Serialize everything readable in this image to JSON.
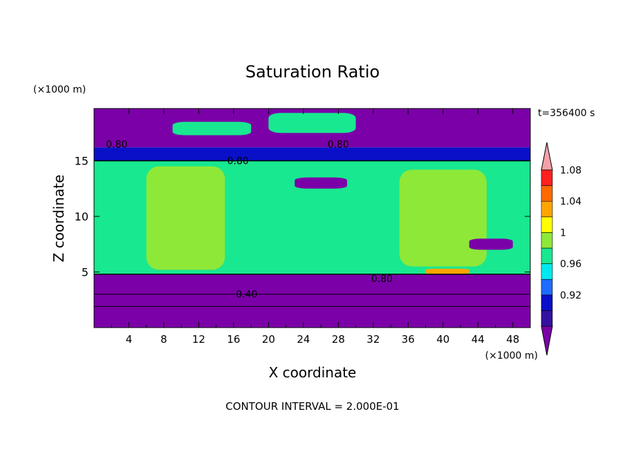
{
  "chart_data": {
    "type": "heatmap",
    "title": "Saturation Ratio",
    "xlabel": "X coordinate",
    "ylabel": "Z coordinate",
    "x_unit": "(×1000 m)",
    "y_unit": "(×1000 m)",
    "time_label": "t=356400 s",
    "footer": "CONTOUR INTERVAL = 2.000E-01",
    "xlim": [
      0,
      50
    ],
    "ylim": [
      0,
      19.7
    ],
    "x_ticks": [
      4,
      8,
      12,
      16,
      20,
      24,
      28,
      32,
      36,
      40,
      44,
      48
    ],
    "y_ticks": [
      5,
      10,
      15
    ],
    "contour_labels": [
      {
        "text": "0.80",
        "x": 2.6,
        "z": 16.5
      },
      {
        "text": "0.80",
        "x": 16.5,
        "z": 15.0
      },
      {
        "text": "0.80",
        "x": 28.0,
        "z": 16.5
      },
      {
        "text": "0.80",
        "x": 33.0,
        "z": 4.4
      },
      {
        "text": "0.40",
        "x": 17.5,
        "z": 3.0
      }
    ],
    "colorbar": {
      "labels": [
        "1.08",
        "1.04",
        "1",
        "0.96",
        "0.92"
      ],
      "colors": [
        "#7b00a8",
        "#3412a0",
        "#0a10c8",
        "#1e6cff",
        "#00e8f0",
        "#18e890",
        "#8ee838",
        "#ffff00",
        "#ffa500",
        "#ff6a00",
        "#ff2020",
        "#f4a0a8"
      ],
      "bins": [
        {
          "upper": 0.9,
          "color": "#7b00a8"
        },
        {
          "upper": 0.92,
          "color": "#3412a0"
        },
        {
          "upper": 0.94,
          "color": "#0a10c8"
        },
        {
          "upper": 0.96,
          "color": "#1e6cff"
        },
        {
          "upper": 0.98,
          "color": "#00e8f0"
        },
        {
          "upper": 1.0,
          "color": "#18e890"
        },
        {
          "upper": 1.02,
          "color": "#8ee838"
        },
        {
          "upper": 1.04,
          "color": "#ffff00"
        },
        {
          "upper": 1.06,
          "color": "#ffa500"
        },
        {
          "upper": 1.08,
          "color": "#ff6a00"
        },
        {
          "upper": 1.1,
          "color": "#ff2020"
        },
        {
          "upper": 1.2,
          "color": "#f4a0a8"
        }
      ]
    },
    "regions": [
      {
        "name": "upper-dry-layer",
        "x": [
          0,
          50
        ],
        "z": [
          16.2,
          19.7
        ],
        "value": 0.85
      },
      {
        "name": "upper-humid-patch-left",
        "x": [
          9,
          18
        ],
        "z": [
          17.3,
          18.5
        ],
        "value": 0.99
      },
      {
        "name": "upper-humid-patch-mid",
        "x": [
          20,
          30
        ],
        "z": [
          17.5,
          19.3
        ],
        "value": 0.99
      },
      {
        "name": "upper-cloud-band",
        "x": [
          0,
          50
        ],
        "z": [
          15.0,
          16.2
        ],
        "value": 0.93
      },
      {
        "name": "mid-humid-layer",
        "x": [
          0,
          50
        ],
        "z": [
          4.8,
          15.0
        ],
        "value": 0.99
      },
      {
        "name": "ice-plume-left",
        "x": [
          6,
          15
        ],
        "z": [
          5.2,
          14.5
        ],
        "value": 1.005
      },
      {
        "name": "ice-plume-center",
        "x": [
          35,
          45
        ],
        "z": [
          5.5,
          14.2
        ],
        "value": 1.005
      },
      {
        "name": "dry-streak-a",
        "x": [
          23,
          29
        ],
        "z": [
          12.5,
          13.5
        ],
        "value": 0.88
      },
      {
        "name": "dry-streak-b",
        "x": [
          43,
          48
        ],
        "z": [
          7.0,
          8.0
        ],
        "value": 0.88
      },
      {
        "name": "supersat-patch",
        "x": [
          38,
          43
        ],
        "z": [
          4.8,
          5.3
        ],
        "value": 1.05
      },
      {
        "name": "lower-dry-layer",
        "x": [
          0,
          50
        ],
        "z": [
          0,
          4.8
        ],
        "value": 0.5
      }
    ]
  }
}
